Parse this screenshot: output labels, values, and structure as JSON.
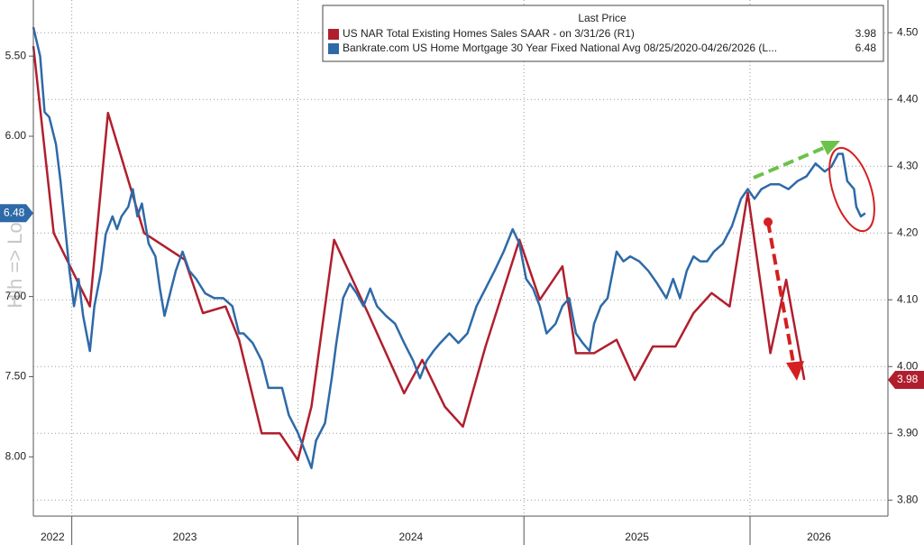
{
  "chart_data": {
    "type": "line",
    "y_label": "Hih => Low",
    "legend_title": "Last Price",
    "legend": "top-right",
    "grid": true,
    "xlim": [
      2022.83,
      2026.61
    ],
    "xticks": [
      {
        "value": 2022,
        "label": "2022"
      },
      {
        "value": 2023,
        "label": "2023"
      },
      {
        "value": 2024,
        "label": "2024"
      },
      {
        "value": 2025,
        "label": "2025"
      },
      {
        "value": 2026,
        "label": "2026"
      }
    ],
    "ylim": [
      8.37,
      5.15
    ],
    "yticks": [
      {
        "value": 5.5,
        "label": "5.50"
      },
      {
        "value": 6,
        "label": "6.00"
      },
      {
        "value": 7,
        "label": "7.00"
      },
      {
        "value": 7.5,
        "label": "7.50"
      },
      {
        "value": 8,
        "label": "8.00"
      }
    ],
    "y2lim": [
      3.776,
      4.549
    ],
    "y2ticks": [
      {
        "value": 3.8,
        "label": "3.80"
      },
      {
        "value": 3.9,
        "label": "3.90"
      },
      {
        "value": 4,
        "label": "4.00"
      },
      {
        "value": 4.1,
        "label": "4.10"
      },
      {
        "value": 4.2,
        "label": "4.20"
      },
      {
        "value": 4.3,
        "label": "4.30"
      },
      {
        "value": 4.4,
        "label": "4.40"
      },
      {
        "value": 4.5,
        "label": "4.50"
      }
    ],
    "series": [
      {
        "name": "US NAR Total Existing Homes Sales SAAR -  on 3/31/26  (R1)",
        "color": "#b01f2e",
        "axis": "y2",
        "x": [
          2022.83,
          2022.92,
          2023.08,
          2023.16,
          2023.32,
          2023.5,
          2023.58,
          2023.68,
          2023.74,
          2023.84,
          2023.92,
          2024.0,
          2024.06,
          2024.16,
          2024.31,
          2024.47,
          2024.55,
          2024.65,
          2024.73,
          2024.83,
          2024.98,
          2025.07,
          2025.17,
          2025.23,
          2025.31,
          2025.41,
          2025.49,
          2025.57,
          2025.67,
          2025.75,
          2025.83,
          2025.91,
          2025.99,
          2026.09,
          2026.16,
          2026.24
        ],
        "values": [
          4.48,
          4.2,
          4.09,
          4.38,
          4.2,
          4.16,
          4.08,
          4.09,
          4.04,
          3.9,
          3.9,
          3.86,
          3.94,
          4.19,
          4.08,
          3.96,
          4.01,
          3.94,
          3.91,
          4.03,
          4.19,
          4.1,
          4.15,
          4.02,
          4.02,
          4.04,
          3.98,
          4.03,
          4.03,
          4.08,
          4.11,
          4.09,
          4.26,
          4.02,
          4.13,
          3.98
        ]
      },
      {
        "name": "Bankrate.com US Home Mortgage 30 Year Fixed National Avg 08/25/2020-04/26/2026   (L...",
        "color": "#2e6aa8",
        "axis": "y",
        "x": [
          2022.83,
          2022.86,
          2022.88,
          2022.9,
          2022.93,
          2022.95,
          2022.97,
          2022.99,
          2023.01,
          2023.03,
          2023.05,
          2023.08,
          2023.1,
          2023.13,
          2023.15,
          2023.18,
          2023.2,
          2023.22,
          2023.25,
          2023.27,
          2023.29,
          2023.31,
          2023.34,
          2023.37,
          2023.39,
          2023.41,
          2023.44,
          2023.46,
          2023.49,
          2023.52,
          2023.55,
          2023.59,
          2023.63,
          2023.67,
          2023.71,
          2023.74,
          2023.76,
          2023.8,
          2023.84,
          2023.87,
          2023.9,
          2023.93,
          2023.96,
          2024.0,
          2024.03,
          2024.06,
          2024.08,
          2024.12,
          2024.15,
          2024.17,
          2024.2,
          2024.23,
          2024.26,
          2024.29,
          2024.32,
          2024.35,
          2024.39,
          2024.43,
          2024.47,
          2024.51,
          2024.54,
          2024.57,
          2024.6,
          2024.63,
          2024.67,
          2024.71,
          2024.75,
          2024.79,
          2024.83,
          2024.87,
          2024.91,
          2024.95,
          2024.98,
          2025.01,
          2025.04,
          2025.07,
          2025.1,
          2025.14,
          2025.17,
          2025.2,
          2025.23,
          2025.26,
          2025.29,
          2025.31,
          2025.34,
          2025.37,
          2025.41,
          2025.44,
          2025.47,
          2025.51,
          2025.55,
          2025.59,
          2025.63,
          2025.66,
          2025.69,
          2025.72,
          2025.75,
          2025.78,
          2025.81,
          2025.84,
          2025.88,
          2025.92,
          2025.96,
          2025.99,
          2026.02,
          2026.05,
          2026.09,
          2026.13,
          2026.17,
          2026.21,
          2026.25,
          2026.29,
          2026.33,
          2026.36,
          2026.39,
          2026.41,
          2026.43,
          2026.46,
          2026.47,
          2026.49,
          2026.51
        ],
        "values": [
          5.32,
          5.5,
          5.85,
          5.88,
          6.05,
          6.28,
          6.56,
          6.84,
          7.06,
          6.89,
          7.12,
          7.34,
          7.06,
          6.84,
          6.61,
          6.5,
          6.58,
          6.5,
          6.44,
          6.33,
          6.5,
          6.42,
          6.67,
          6.75,
          6.95,
          7.12,
          6.95,
          6.84,
          6.72,
          6.84,
          6.89,
          6.98,
          7.01,
          7.01,
          7.06,
          7.23,
          7.23,
          7.29,
          7.4,
          7.57,
          7.57,
          7.57,
          7.74,
          7.85,
          7.96,
          8.07,
          7.9,
          7.79,
          7.51,
          7.29,
          7.01,
          6.92,
          6.98,
          7.06,
          6.95,
          7.06,
          7.12,
          7.17,
          7.29,
          7.4,
          7.51,
          7.4,
          7.34,
          7.29,
          7.23,
          7.29,
          7.23,
          7.06,
          6.95,
          6.84,
          6.72,
          6.58,
          6.67,
          6.89,
          6.95,
          7.06,
          7.23,
          7.17,
          7.06,
          7.01,
          7.23,
          7.29,
          7.34,
          7.17,
          7.06,
          7.01,
          6.72,
          6.78,
          6.75,
          6.78,
          6.84,
          6.92,
          7.01,
          6.89,
          7.01,
          6.84,
          6.75,
          6.78,
          6.78,
          6.72,
          6.67,
          6.56,
          6.39,
          6.33,
          6.39,
          6.33,
          6.3,
          6.3,
          6.33,
          6.28,
          6.25,
          6.17,
          6.22,
          6.19,
          6.11,
          6.11,
          6.28,
          6.33,
          6.44,
          6.5,
          6.48
        ]
      }
    ]
  }
}
